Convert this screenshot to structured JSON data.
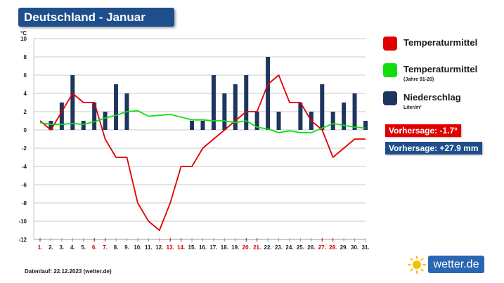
{
  "title": "Deutschland - Januar",
  "legend": [
    {
      "label": "Temperaturmittel",
      "sub": "",
      "color": "#e00000"
    },
    {
      "label": "Temperaturmittel",
      "sub": "(Jahre 91-20)",
      "color": "#11dd11"
    },
    {
      "label": "Niederschlag",
      "sub": "Liter/m²",
      "color": "#1e3560"
    }
  ],
  "forecast_temp": "Vorhersage: -1.7°",
  "forecast_precip": "Vorhersage: +27.9 mm",
  "forecast_colors": {
    "temp": "#e00000",
    "precip": "#1f4e8c"
  },
  "footer": "Datenlauf: 22.12.2023 (wetter.de)",
  "logo_text": "wetter.de",
  "logo_icon": "sun-icon",
  "chart_data": {
    "type": "bar+line",
    "ylabel": "°C",
    "ylim": [
      -12,
      10
    ],
    "yticks": [
      -12,
      -10,
      -8,
      -6,
      -4,
      -2,
      0,
      2,
      4,
      6,
      8,
      10
    ],
    "grid": true,
    "categories": [
      "1.",
      "2.",
      "3.",
      "4.",
      "5.",
      "6.",
      "7.",
      "8.",
      "9.",
      "10.",
      "11.",
      "12.",
      "13.",
      "14.",
      "15.",
      "16.",
      "17.",
      "18.",
      "19.",
      "20.",
      "21.",
      "22.",
      "23.",
      "24.",
      "25.",
      "26.",
      "27.",
      "28.",
      "29.",
      "30.",
      "31."
    ],
    "weekend_days": [
      1,
      6,
      7,
      13,
      14,
      20,
      21,
      27,
      28
    ],
    "series": [
      {
        "name": "Niederschlag",
        "type": "bar",
        "color": "#1e3560",
        "values": [
          0,
          1,
          3,
          6,
          1,
          3,
          2,
          5,
          4,
          0,
          0,
          0,
          0,
          0,
          1,
          1,
          6,
          4,
          5,
          6,
          2,
          8,
          2,
          0,
          3,
          2,
          5,
          2,
          3,
          4,
          1
        ]
      },
      {
        "name": "Temperaturmittel",
        "type": "line",
        "color": "#e00000",
        "values": [
          1,
          0,
          2,
          4,
          3,
          3,
          -1,
          -3,
          -3,
          -8,
          -10,
          -11,
          -8,
          -4,
          -4,
          -2,
          -1,
          0,
          1,
          2,
          2,
          5,
          6,
          3,
          3,
          1,
          0,
          -3,
          -2,
          -1,
          -1
        ]
      },
      {
        "name": "Temperaturmittel",
        "type": "line",
        "color": "#11dd11",
        "values": [
          0.8,
          0.6,
          0.6,
          0.7,
          0.6,
          0.9,
          1.3,
          1.6,
          2.0,
          2.1,
          1.5,
          1.6,
          1.7,
          1.4,
          1.1,
          1.1,
          1.0,
          1.0,
          0.8,
          1.0,
          0.3,
          0.1,
          -0.3,
          -0.1,
          -0.3,
          -0.3,
          0.2,
          0.7,
          0.5,
          0.3,
          0.2
        ]
      }
    ]
  }
}
